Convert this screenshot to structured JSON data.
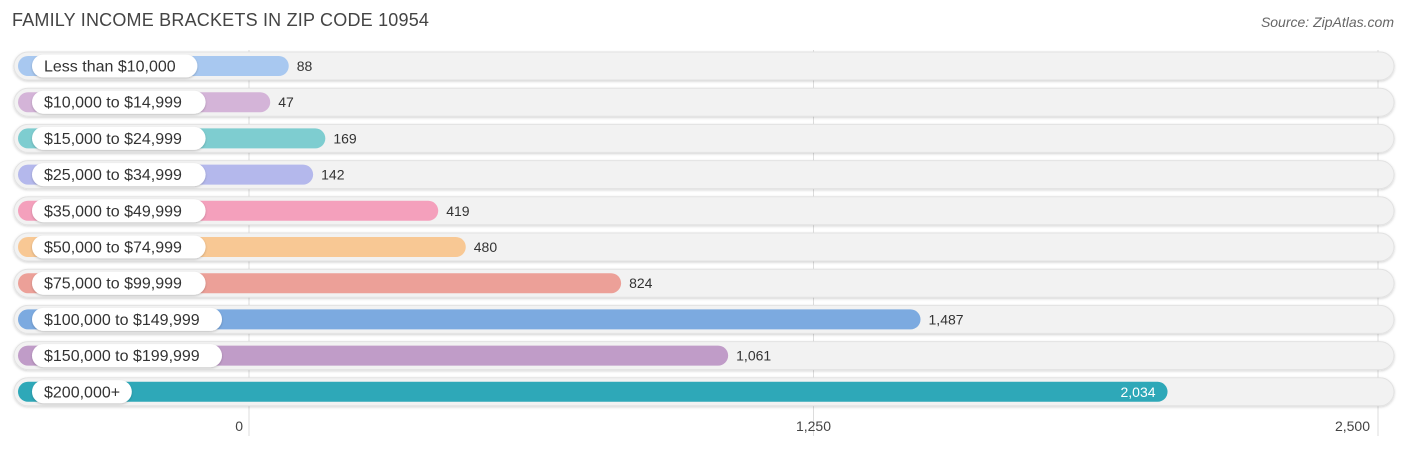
{
  "title": "FAMILY INCOME BRACKETS IN ZIP CODE 10954",
  "source": "Source: ZipAtlas.com",
  "chart_data": {
    "type": "bar",
    "orientation": "horizontal",
    "title": "FAMILY INCOME BRACKETS IN ZIP CODE 10954",
    "categories": [
      "Less than $10,000",
      "$10,000 to $14,999",
      "$15,000 to $24,999",
      "$25,000 to $34,999",
      "$35,000 to $49,999",
      "$50,000 to $74,999",
      "$75,000 to $99,999",
      "$100,000 to $149,999",
      "$150,000 to $199,999",
      "$200,000+"
    ],
    "values": [
      88,
      47,
      169,
      142,
      419,
      480,
      824,
      1487,
      1061,
      2034
    ],
    "value_labels": [
      "88",
      "47",
      "169",
      "142",
      "419",
      "480",
      "824",
      "1,487",
      "1,061",
      "2,034"
    ],
    "colors": [
      "#a8c8f0",
      "#d4b4d8",
      "#7ecdd0",
      "#b4b8ec",
      "#f4a0bc",
      "#f8c894",
      "#eca098",
      "#7caae0",
      "#c09cc8",
      "#2ea8b8"
    ],
    "xlim": [
      0,
      2500
    ],
    "ticks": [
      0,
      1250,
      2500
    ],
    "tick_labels": [
      "0",
      "1,250",
      "2,500"
    ],
    "grid": true,
    "xlabel": "",
    "ylabel": ""
  }
}
